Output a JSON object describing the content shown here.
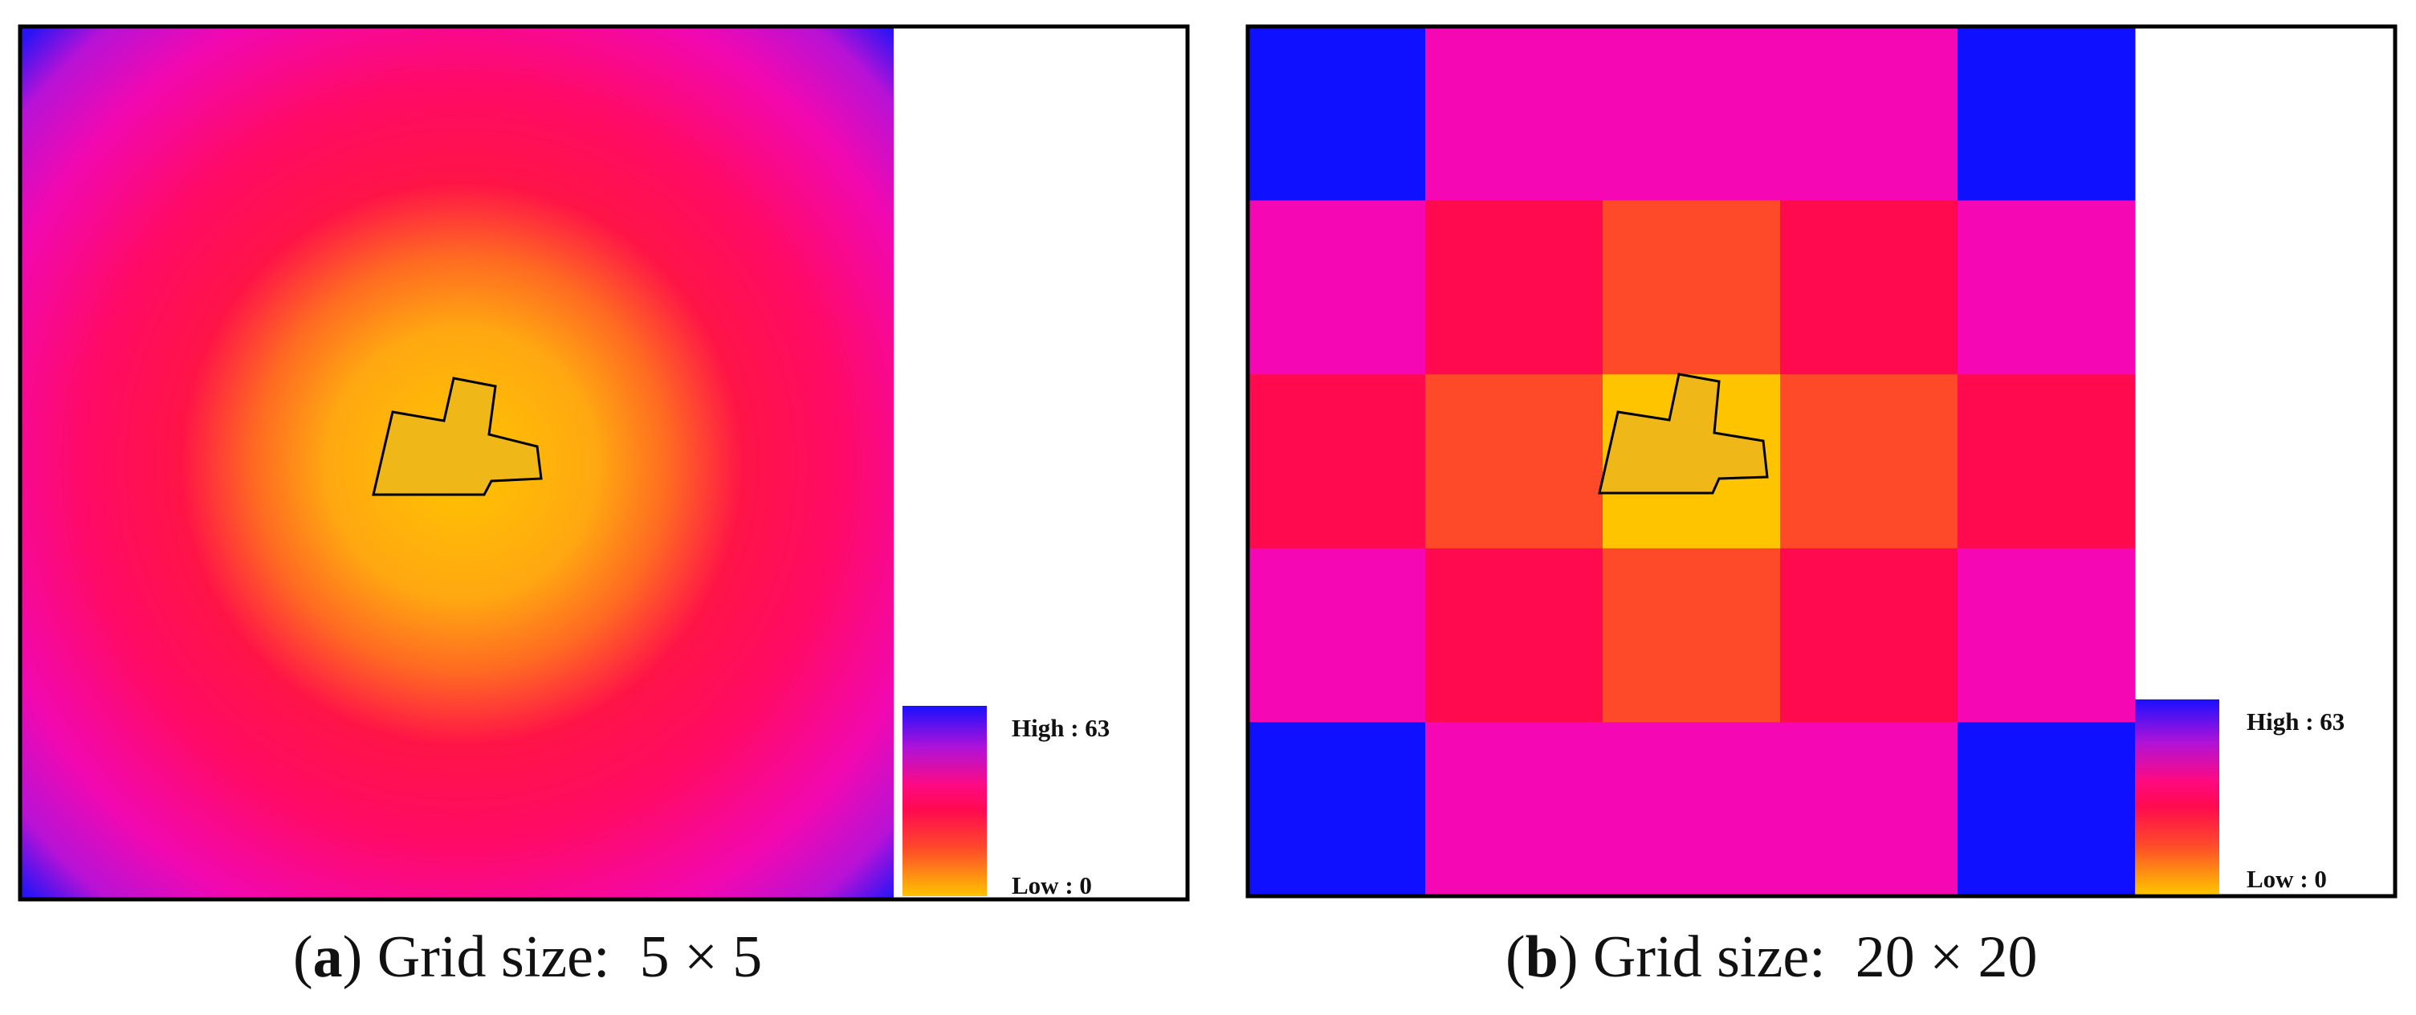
{
  "panels": [
    {
      "letter": "a",
      "caption": "Grid size:",
      "grid_label": "5 × 5",
      "legend": {
        "high_label": "High : 63",
        "low_label": "Low : 0"
      }
    },
    {
      "letter": "b",
      "caption": "Grid size:",
      "grid_label": "20 × 20",
      "legend": {
        "high_label": "High : 63",
        "low_label": "Low : 0"
      }
    }
  ],
  "colors": {
    "low": "#ffc400",
    "mid_low": "#ff4a2a",
    "mid": "#ff0a4f",
    "mid_high": "#f508b4",
    "high": "#0f10ff",
    "target_fill": "#efb818",
    "target_stroke": "#000000"
  },
  "chart_data": [
    {
      "type": "heatmap",
      "title": "(a) Grid size: 5 × 5",
      "grid_label": "5 × 5",
      "value_range": [
        0,
        63
      ],
      "legend_high": "High : 63",
      "legend_low": "Low : 0",
      "colormap": [
        "#ffc400",
        "#ff4a2a",
        "#ff0a4f",
        "#f508b4",
        "#0f10ff"
      ],
      "field": "smooth radial — minimum at the target polygon near the centre, increasing outward, maximum in the corners",
      "has_target_polygon": true
    },
    {
      "type": "heatmap",
      "title": "(b) Grid size: 20 × 20",
      "grid_label": "20 × 20",
      "value_range": [
        0,
        63
      ],
      "legend_high": "High : 63",
      "legend_low": "Low : 0",
      "colormap": [
        "#ffc400",
        "#ff4a2a",
        "#ff0a4f",
        "#f508b4",
        "#0f10ff"
      ],
      "cells": [
        [
          63,
          44,
          40,
          44,
          63
        ],
        [
          44,
          27,
          17,
          27,
          44
        ],
        [
          36,
          17,
          0,
          17,
          36
        ],
        [
          44,
          27,
          17,
          27,
          44
        ],
        [
          63,
          44,
          40,
          44,
          63
        ]
      ],
      "has_target_polygon": true
    }
  ]
}
